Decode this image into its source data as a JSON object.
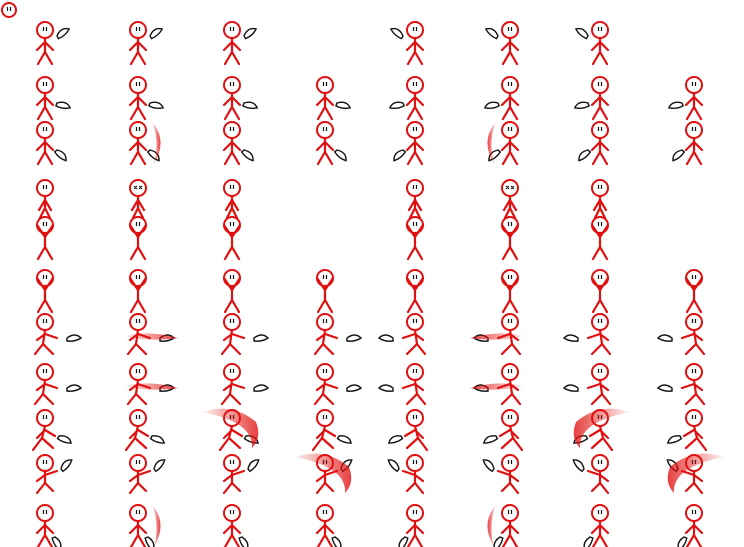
{
  "sheet": {
    "kind": "sprite-sheet",
    "character": "stick-figure",
    "colors": {
      "body": "#e01010",
      "weapon_outline": "#111111",
      "weapon_fill": "#ffffff",
      "swoosh": "#e01010",
      "background": "#ffffff"
    },
    "rows": [
      {
        "pose": "idle",
        "weapon": "back"
      },
      {
        "pose": "walk",
        "weapon": "side"
      },
      {
        "pose": "slash",
        "weapon": "swing"
      },
      {
        "pose": "hurt",
        "weapon": "none"
      },
      {
        "pose": "arms-up",
        "weapon": "none"
      },
      {
        "pose": "cheer",
        "weapon": "none"
      },
      {
        "pose": "thrust",
        "weapon": "extended"
      },
      {
        "pose": "lunge",
        "weapon": "extended"
      },
      {
        "pose": "crouch-slash",
        "weapon": "spin"
      },
      {
        "pose": "jump-slash",
        "weapon": "up"
      },
      {
        "pose": "overhead",
        "weapon": "down"
      }
    ],
    "columns_per_row": [
      6,
      8,
      8,
      6,
      6,
      8,
      8,
      8,
      8,
      8,
      8
    ],
    "swoosh_frames": [
      [
        2,
        1
      ],
      [
        2,
        5
      ],
      [
        6,
        1
      ],
      [
        6,
        5
      ],
      [
        7,
        1
      ],
      [
        7,
        5
      ],
      [
        8,
        2
      ],
      [
        8,
        6
      ],
      [
        9,
        3
      ],
      [
        9,
        7
      ],
      [
        10,
        1
      ],
      [
        10,
        5
      ]
    ],
    "hurt_frames": [
      [
        3,
        1
      ],
      [
        3,
        4
      ]
    ]
  }
}
